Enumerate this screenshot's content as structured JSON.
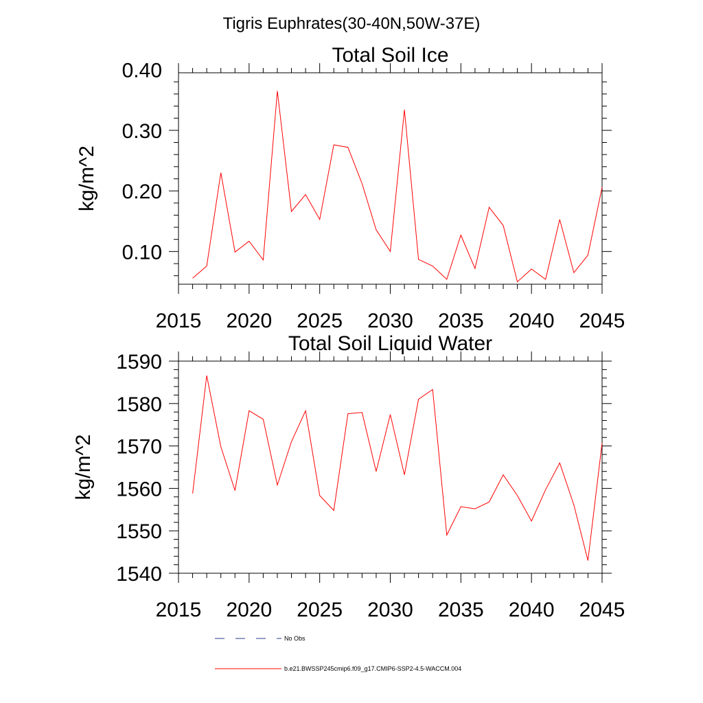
{
  "figure": {
    "suptitle": "Tigris Euphrates(30-40N,50W-37E)"
  },
  "legend": {
    "entries": [
      {
        "label": "No Obs",
        "color": "#2b3d8f",
        "style": "dashed"
      },
      {
        "label": "b.e21.BWSSP245cmip6.f09_g17.CMIP6-SSP2-4.5-WACCM.004",
        "color": "#ff0000",
        "style": "solid"
      }
    ]
  },
  "chart_data": [
    {
      "type": "line",
      "title": "Total Soil Ice",
      "xlabel": "",
      "ylabel": "kg/m^2",
      "xlim": [
        2015,
        2045
      ],
      "ylim": [
        0.046,
        0.395
      ],
      "x_ticks": [
        2015,
        2020,
        2025,
        2030,
        2035,
        2040,
        2045
      ],
      "x_tick_labels": [
        "2015",
        "2020",
        "2025",
        "2030",
        "2035",
        "2040",
        "2045"
      ],
      "y_ticks": [
        0.1,
        0.2,
        0.3,
        0.4
      ],
      "y_tick_labels": [
        "0.10",
        "0.20",
        "0.30",
        "0.40"
      ],
      "grid": false,
      "series": [
        {
          "name": "b.e21.BWSSP245cmip6.f09_g17.CMIP6-SSP2-4.5-WACCM.004",
          "color": "#ff0000",
          "x": [
            2016,
            2017,
            2018,
            2019,
            2020,
            2021,
            2022,
            2023,
            2024,
            2025,
            2026,
            2027,
            2028,
            2029,
            2030,
            2031,
            2032,
            2033,
            2034,
            2035,
            2036,
            2037,
            2038,
            2039,
            2040,
            2041,
            2042,
            2043,
            2044,
            2045
          ],
          "values": [
            0.056,
            0.076,
            0.23,
            0.099,
            0.117,
            0.086,
            0.365,
            0.166,
            0.194,
            0.153,
            0.276,
            0.272,
            0.212,
            0.136,
            0.1,
            0.334,
            0.087,
            0.076,
            0.054,
            0.127,
            0.072,
            0.173,
            0.143,
            0.05,
            0.071,
            0.054,
            0.153,
            0.065,
            0.094,
            0.206
          ]
        }
      ]
    },
    {
      "type": "line",
      "title": "Total Soil Liquid Water",
      "xlabel": "",
      "ylabel": "kg/m^2",
      "xlim": [
        2015,
        2045
      ],
      "ylim": [
        1540,
        1590
      ],
      "x_ticks": [
        2015,
        2020,
        2025,
        2030,
        2035,
        2040,
        2045
      ],
      "x_tick_labels": [
        "2015",
        "2020",
        "2025",
        "2030",
        "2035",
        "2040",
        "2045"
      ],
      "y_ticks": [
        1540,
        1550,
        1560,
        1570,
        1580,
        1590
      ],
      "y_tick_labels": [
        "1540",
        "1550",
        "1560",
        "1570",
        "1580",
        "1590"
      ],
      "grid": false,
      "series": [
        {
          "name": "b.e21.BWSSP245cmip6.f09_g17.CMIP6-SSP2-4.5-WACCM.004",
          "color": "#ff0000",
          "x": [
            2016,
            2017,
            2018,
            2019,
            2020,
            2021,
            2022,
            2023,
            2024,
            2025,
            2026,
            2027,
            2028,
            2029,
            2030,
            2031,
            2032,
            2033,
            2034,
            2035,
            2036,
            2037,
            2038,
            2039,
            2040,
            2041,
            2042,
            2043,
            2044,
            2045
          ],
          "values": [
            1558.8,
            1586.6,
            1569.8,
            1559.5,
            1578.3,
            1576.3,
            1560.8,
            1571.0,
            1578.3,
            1558.3,
            1554.8,
            1577.6,
            1577.9,
            1564.0,
            1577.4,
            1563.2,
            1581.0,
            1583.3,
            1549.0,
            1555.7,
            1555.2,
            1556.8,
            1563.2,
            1558.3,
            1552.3,
            1559.7,
            1566.0,
            1556.1,
            1543.0,
            1570.7
          ]
        }
      ]
    }
  ]
}
